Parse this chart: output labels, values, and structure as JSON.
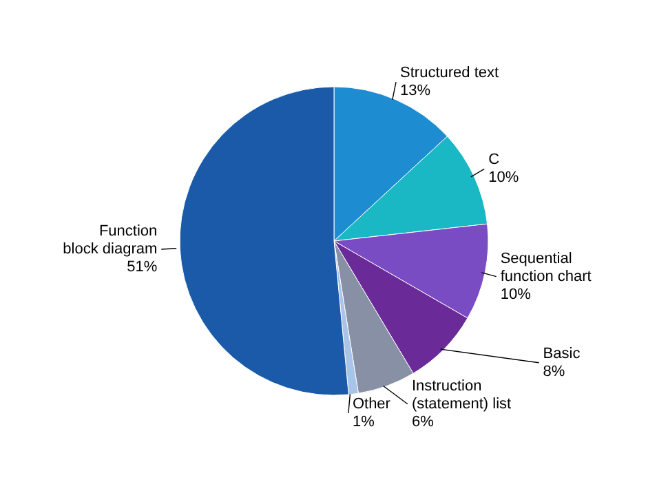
{
  "chart_data": {
    "type": "pie",
    "categories": [
      "Structured text",
      "C",
      "Sequential function chart",
      "Basic",
      "Instruction (statement) list",
      "Other",
      "Function block diagram"
    ],
    "values": [
      13,
      10,
      10,
      8,
      6,
      1,
      51
    ],
    "value_labels": [
      "13%",
      "10%",
      "10%",
      "8%",
      "6%",
      "1%",
      "51%"
    ],
    "colors": [
      "#1e8cd0",
      "#1ab8c4",
      "#7a4cc4",
      "#6a2a98",
      "#8890a6",
      "#a9c4e6",
      "#1a5aa8"
    ]
  }
}
